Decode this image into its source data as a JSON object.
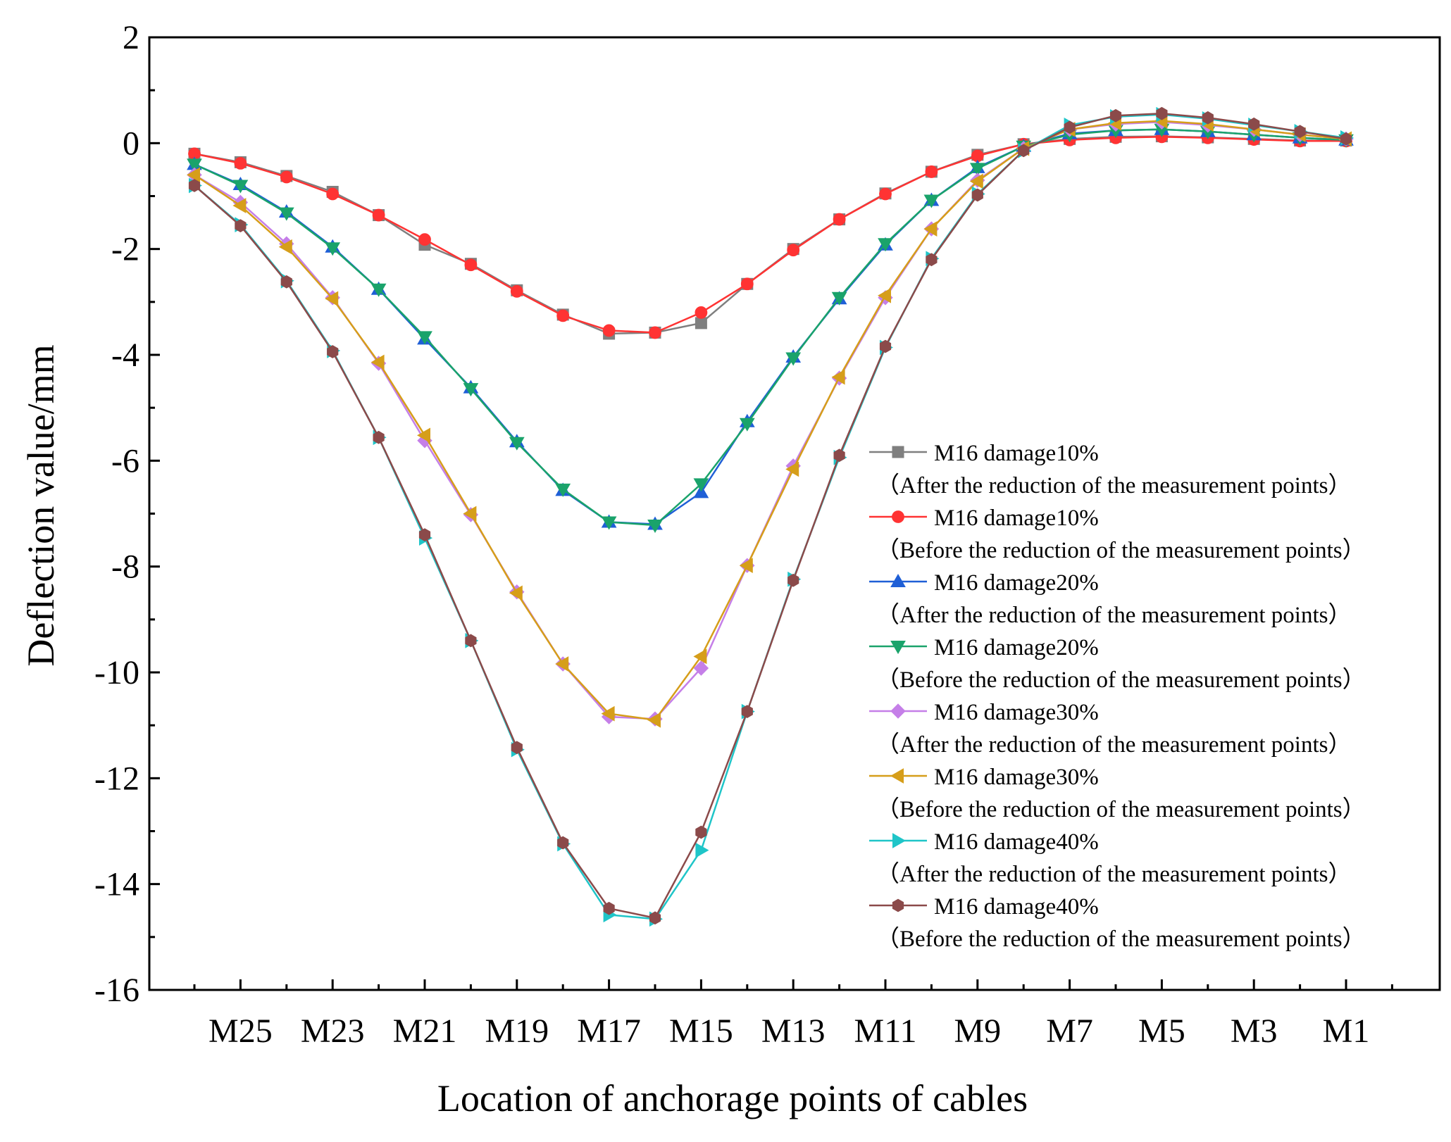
{
  "chart_data": {
    "type": "line",
    "title": "",
    "xlabel": "Location of anchorage points of cables",
    "ylabel": "Deflection value/mm",
    "ylim": [
      -16,
      2
    ],
    "yticks": [
      "2",
      "0",
      "-2",
      "-4",
      "-6",
      "-8",
      "-10",
      "-12",
      "-14",
      "-16"
    ],
    "yticks_values": [
      2,
      0,
      -2,
      -4,
      -6,
      -8,
      -10,
      -12,
      -14,
      -16
    ],
    "x_positions": [
      "M26",
      "M25",
      "M24",
      "M23",
      "M22",
      "M21",
      "M20",
      "M19",
      "M18",
      "M17",
      "M16",
      "M15",
      "M14",
      "M13",
      "M12",
      "M11",
      "M10",
      "M9",
      "M8",
      "M7",
      "M6",
      "M5",
      "M4",
      "M3",
      "M2",
      "M1"
    ],
    "xtick_labels": [
      "M25",
      "M23",
      "M21",
      "M19",
      "M17",
      "M15",
      "M13",
      "M11",
      "M9",
      "M7",
      "M5",
      "M3",
      "M1"
    ],
    "legend_position": "center-right",
    "series": [
      {
        "name": "M16 damage10%",
        "note": "（After the reduction of the measurement points）",
        "color": "#7f7f7f",
        "marker": "square",
        "values": [
          -0.2,
          -0.36,
          -0.62,
          -0.92,
          -1.36,
          -1.92,
          -2.28,
          -2.78,
          -3.24,
          -3.6,
          -3.58,
          -3.4,
          -2.66,
          -2.0,
          -1.44,
          -0.95,
          -0.54,
          -0.22,
          -0.02,
          0.08,
          0.12,
          0.13,
          0.11,
          0.08,
          0.05,
          0.05
        ]
      },
      {
        "name": "M16 damage10%",
        "note": "（Before the reduction of the measurement points）",
        "color": "#ff3333",
        "marker": "circle",
        "values": [
          -0.2,
          -0.38,
          -0.64,
          -0.96,
          -1.36,
          -1.82,
          -2.3,
          -2.8,
          -3.26,
          -3.54,
          -3.58,
          -3.2,
          -2.66,
          -2.02,
          -1.44,
          -0.96,
          -0.54,
          -0.24,
          -0.02,
          0.06,
          0.1,
          0.12,
          0.1,
          0.07,
          0.04,
          0.04
        ]
      },
      {
        "name": "M16 damage20%",
        "note": "（After the reduction  of the measurement points）",
        "color": "#1f5fd6",
        "marker": "triangle-up",
        "values": [
          -0.4,
          -0.78,
          -1.3,
          -1.96,
          -2.76,
          -3.7,
          -4.62,
          -5.64,
          -6.56,
          -7.16,
          -7.2,
          -6.6,
          -5.26,
          -4.04,
          -2.94,
          -1.92,
          -1.08,
          -0.46,
          -0.06,
          0.18,
          0.24,
          0.26,
          0.22,
          0.16,
          0.1,
          0.06
        ]
      },
      {
        "name": "M16 damage20%",
        "note": "（Before the reduction  of the measurement points）",
        "color": "#1aa36b",
        "marker": "triangle-down",
        "values": [
          -0.4,
          -0.8,
          -1.32,
          -1.98,
          -2.76,
          -3.66,
          -4.64,
          -5.66,
          -6.54,
          -7.16,
          -7.22,
          -6.44,
          -5.3,
          -4.06,
          -2.92,
          -1.9,
          -1.08,
          -0.48,
          -0.06,
          0.16,
          0.24,
          0.26,
          0.22,
          0.16,
          0.1,
          0.06
        ]
      },
      {
        "name": "M16 damage30%",
        "note": "（After the reduction  of the measurement points）",
        "color": "#c57fe8",
        "marker": "diamond",
        "values": [
          -0.6,
          -1.12,
          -1.9,
          -2.92,
          -4.16,
          -5.62,
          -7.02,
          -8.48,
          -9.84,
          -10.84,
          -10.88,
          -9.92,
          -7.98,
          -6.1,
          -4.44,
          -2.92,
          -1.62,
          -0.7,
          -0.1,
          0.26,
          0.36,
          0.4,
          0.34,
          0.26,
          0.16,
          0.08
        ]
      },
      {
        "name": "M16 damage30%",
        "note": "（Before the reduction  of the measurement points）",
        "color": "#d69e1a",
        "marker": "triangle-left",
        "values": [
          -0.6,
          -1.18,
          -1.96,
          -2.94,
          -4.14,
          -5.52,
          -7.0,
          -8.5,
          -9.84,
          -10.78,
          -10.9,
          -9.7,
          -7.98,
          -6.16,
          -4.42,
          -2.88,
          -1.62,
          -0.72,
          -0.1,
          0.26,
          0.38,
          0.42,
          0.36,
          0.26,
          0.16,
          0.08
        ]
      },
      {
        "name": "M16 damage40%",
        "note": "（After the reduction  of the measurement points）",
        "color": "#1fc5c8",
        "marker": "triangle-right",
        "values": [
          -0.8,
          -1.54,
          -2.6,
          -3.92,
          -5.56,
          -7.46,
          -9.4,
          -11.46,
          -13.24,
          -14.58,
          -14.66,
          -13.36,
          -10.74,
          -8.24,
          -5.94,
          -3.86,
          -2.18,
          -0.96,
          -0.14,
          0.34,
          0.5,
          0.54,
          0.46,
          0.34,
          0.22,
          0.1
        ]
      },
      {
        "name": "M16 damage40%",
        "note": "（Before the reduction  of the measurement points）",
        "color": "#8b4a4a",
        "marker": "hexagon",
        "values": [
          -0.8,
          -1.56,
          -2.62,
          -3.94,
          -5.56,
          -7.4,
          -9.4,
          -11.42,
          -13.22,
          -14.46,
          -14.64,
          -13.02,
          -10.74,
          -8.26,
          -5.9,
          -3.84,
          -2.2,
          -0.98,
          -0.14,
          0.3,
          0.52,
          0.56,
          0.48,
          0.36,
          0.22,
          0.08
        ]
      }
    ]
  }
}
